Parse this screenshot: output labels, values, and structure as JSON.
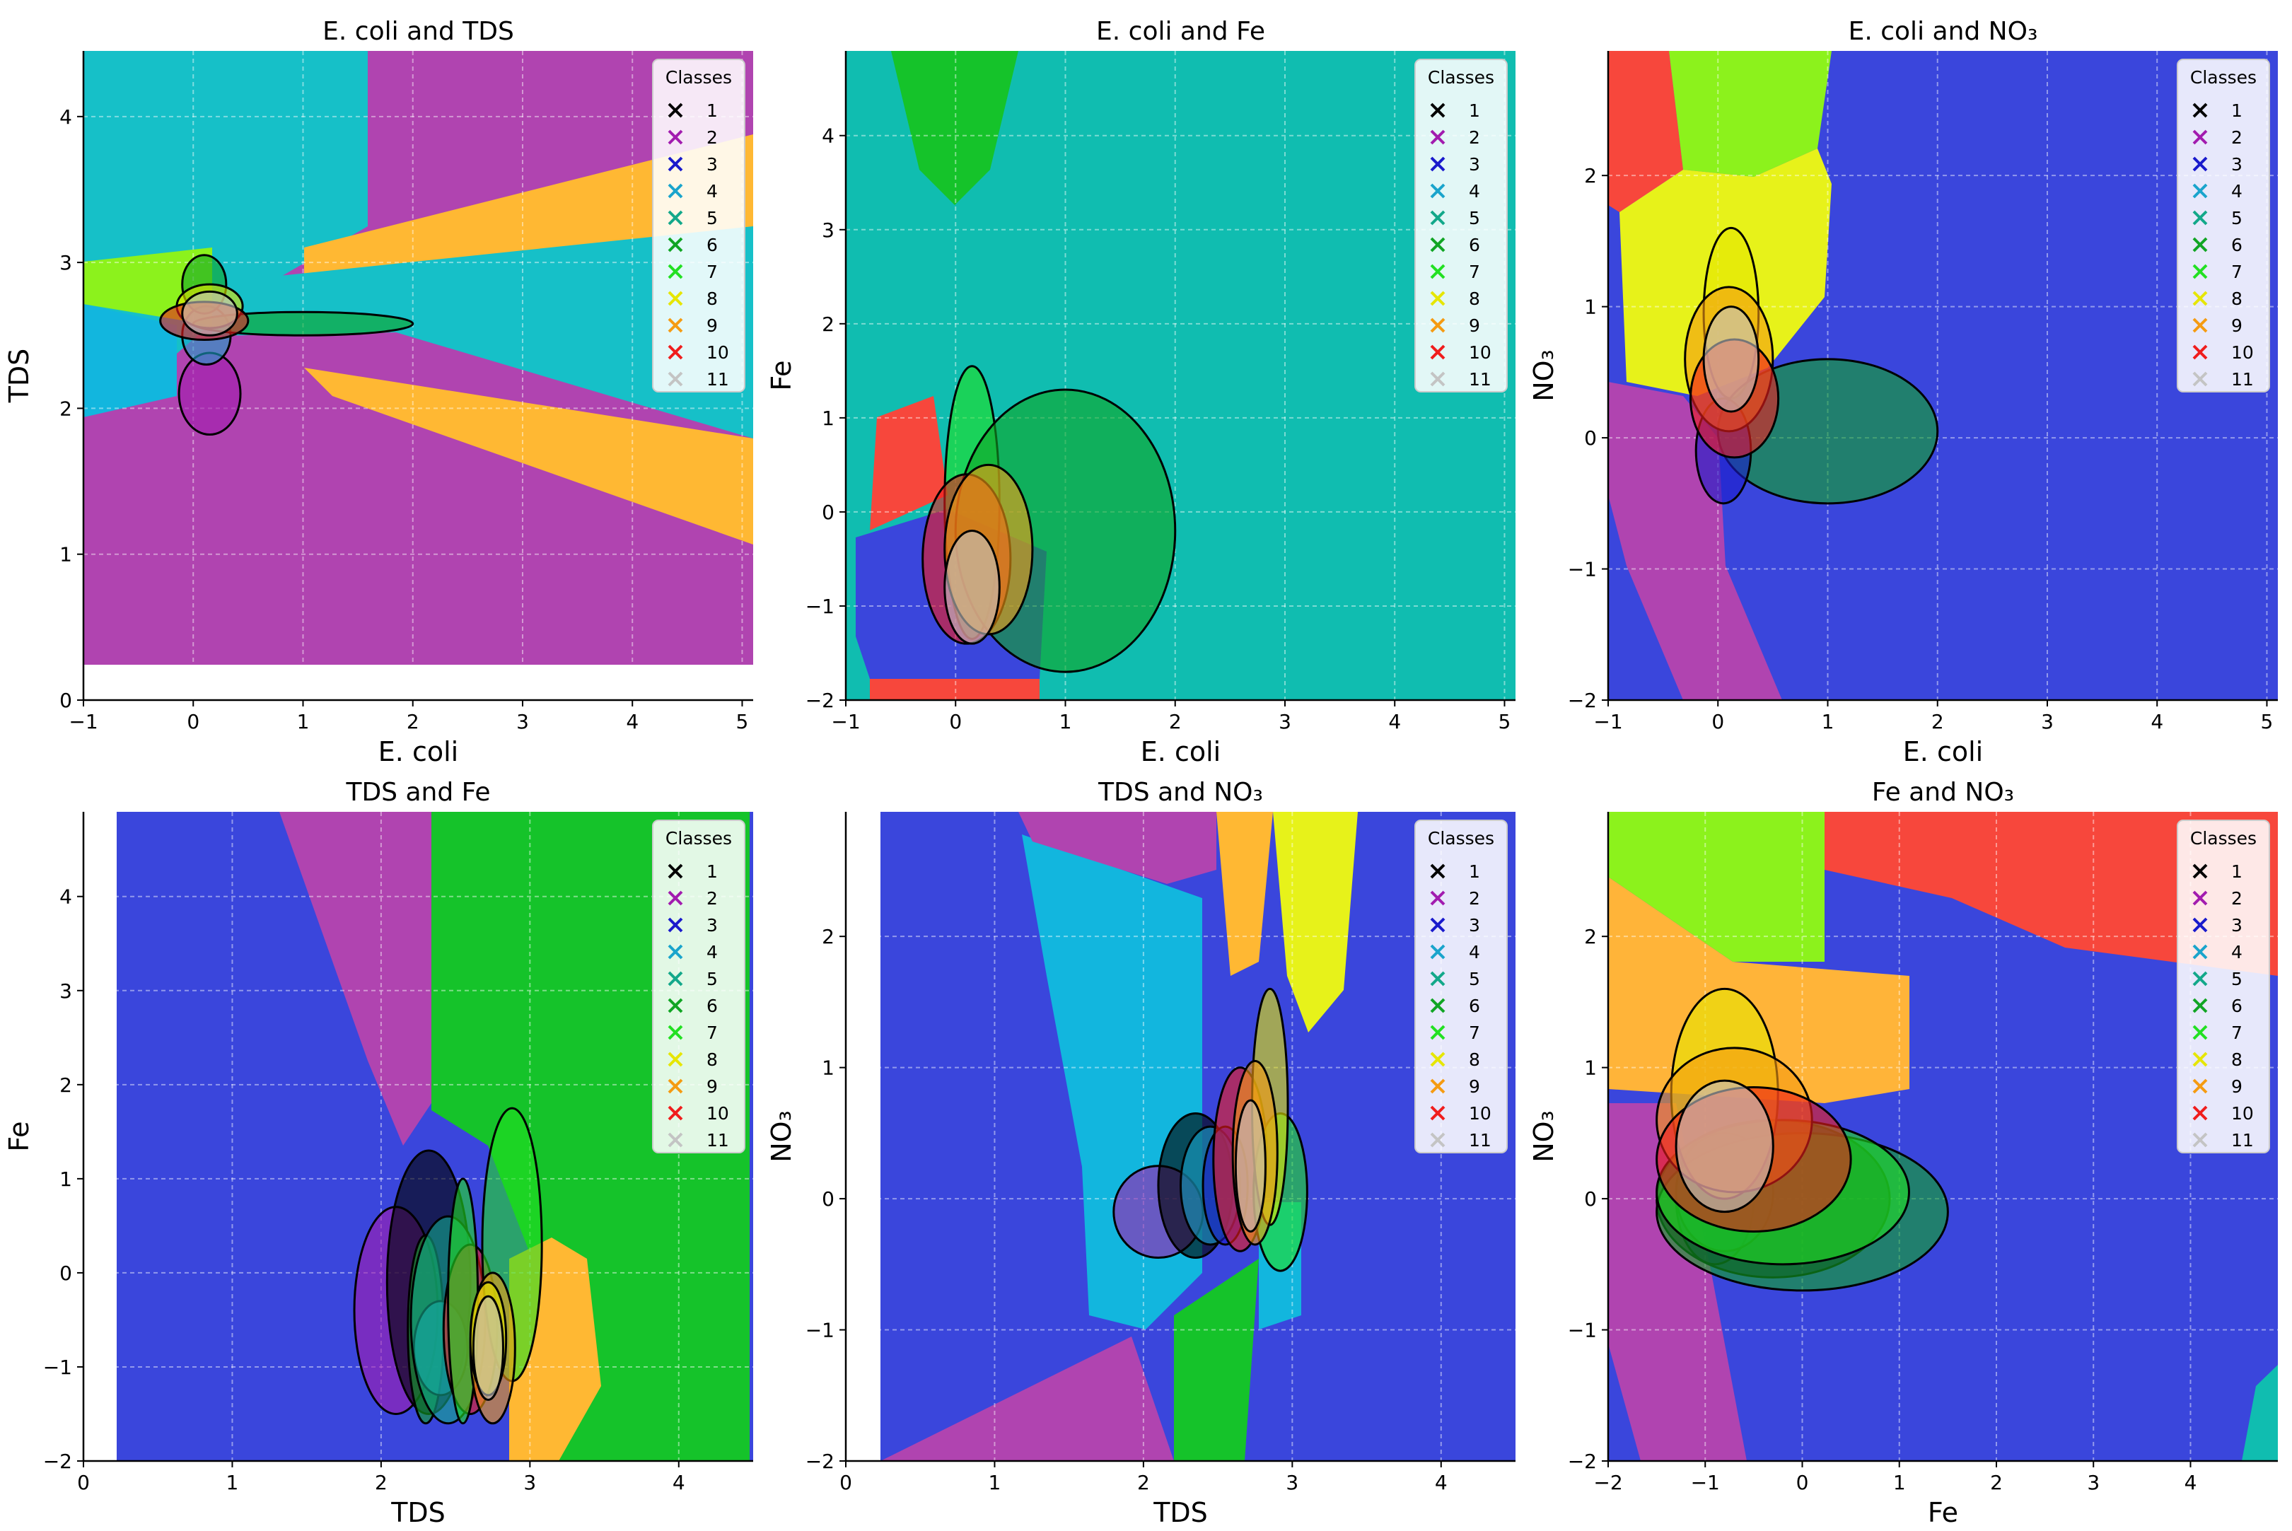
{
  "figure": {
    "legend_title": "Classes",
    "class_labels": [
      "1",
      "2",
      "3",
      "4",
      "5",
      "6",
      "7",
      "8",
      "9",
      "10",
      "11"
    ],
    "class_colors": [
      "#000000",
      "#a21caf",
      "#1a1acc",
      "#1aa4cc",
      "#13a88a",
      "#11a524",
      "#22e022",
      "#e6e600",
      "#f59b12",
      "#f01d1d",
      "#c4c4c4"
    ],
    "region_colors": {
      "magenta": "#b044b0",
      "teal": "#10bdb0",
      "cyan_light": "#16c0c8",
      "orange": "#ffb833",
      "green": "#15c32a",
      "lime": "#8cf21c",
      "blue": "#3a46dc",
      "sky": "#12b6de",
      "yellow": "#e7f21a",
      "red": "#f7473c",
      "light_orange": "#ffb439"
    }
  },
  "chart_data": [
    {
      "type": "scatter",
      "title": "E. coli and TDS",
      "xlabel": "E. coli",
      "ylabel": "TDS",
      "xlim": [
        -1,
        5.1
      ],
      "ylim": [
        0,
        4.45
      ],
      "xticks": [
        -1,
        0,
        1,
        2,
        3,
        4,
        5
      ],
      "yticks": [
        0,
        1,
        2,
        3,
        4
      ],
      "tick_labels_x": [
        "−1",
        "0",
        "1",
        "2",
        "3",
        "4",
        "5"
      ],
      "tick_labels_y": [
        "0",
        "1",
        "2",
        "3",
        "4"
      ],
      "grid": true,
      "legend_placement": "top-right",
      "decision_region_background": true,
      "gaussian_ellipses": [
        {
          "class": "2",
          "cx": 0.15,
          "cy": 2.1,
          "rx": 0.28,
          "ry": 0.28
        },
        {
          "class": "4",
          "cx": 0.12,
          "cy": 2.5,
          "rx": 0.22,
          "ry": 0.2
        },
        {
          "class": "6",
          "cx": 0.1,
          "cy": 2.85,
          "rx": 0.2,
          "ry": 0.2
        },
        {
          "class": "6",
          "cx": 1.0,
          "cy": 2.58,
          "rx": 1.0,
          "ry": 0.08
        },
        {
          "class": "8",
          "cx": 0.15,
          "cy": 2.7,
          "rx": 0.3,
          "ry": 0.15
        },
        {
          "class": "10",
          "cx": 0.1,
          "cy": 2.6,
          "rx": 0.4,
          "ry": 0.13
        },
        {
          "class": "11",
          "cx": 0.15,
          "cy": 2.65,
          "rx": 0.25,
          "ry": 0.15
        }
      ]
    },
    {
      "type": "scatter",
      "title": "E. coli and Fe",
      "xlabel": "E. coli",
      "ylabel": "Fe",
      "xlim": [
        -1,
        5.1
      ],
      "ylim": [
        -2,
        4.9
      ],
      "xticks": [
        -1,
        0,
        1,
        2,
        3,
        4,
        5
      ],
      "yticks": [
        -2,
        -1,
        0,
        1,
        2,
        3,
        4
      ],
      "tick_labels_x": [
        "−1",
        "0",
        "1",
        "2",
        "3",
        "4",
        "5"
      ],
      "tick_labels_y": [
        "−2",
        "−1",
        "0",
        "1",
        "2",
        "3",
        "4"
      ],
      "grid": true,
      "legend_placement": "top-right",
      "decision_region_background": true,
      "gaussian_ellipses": [
        {
          "class": "7",
          "cx": 0.15,
          "cy": 0.1,
          "rx": 0.25,
          "ry": 1.45
        },
        {
          "class": "6",
          "cx": 1.0,
          "cy": -0.2,
          "rx": 1.0,
          "ry": 1.5
        },
        {
          "class": "10",
          "cx": 0.1,
          "cy": -0.5,
          "rx": 0.4,
          "ry": 0.9
        },
        {
          "class": "9",
          "cx": 0.3,
          "cy": -0.4,
          "rx": 0.4,
          "ry": 0.9
        },
        {
          "class": "11",
          "cx": 0.15,
          "cy": -0.8,
          "rx": 0.25,
          "ry": 0.6
        }
      ]
    },
    {
      "type": "scatter",
      "title": "E. coli and NO₃",
      "xlabel": "E. coli",
      "ylabel": "NO₃",
      "xlim": [
        -1,
        5.1
      ],
      "ylim": [
        -2,
        2.95
      ],
      "xticks": [
        -1,
        0,
        1,
        2,
        3,
        4,
        5
      ],
      "yticks": [
        -2,
        -1,
        0,
        1,
        2
      ],
      "tick_labels_x": [
        "−1",
        "0",
        "1",
        "2",
        "3",
        "4",
        "5"
      ],
      "tick_labels_y": [
        "−2",
        "−1",
        "0",
        "1",
        "2"
      ],
      "grid": true,
      "legend_placement": "top-right",
      "decision_region_background": true,
      "gaussian_ellipses": [
        {
          "class": "8",
          "cx": 0.12,
          "cy": 0.95,
          "rx": 0.25,
          "ry": 0.65
        },
        {
          "class": "6",
          "cx": 1.0,
          "cy": 0.05,
          "rx": 1.0,
          "ry": 0.55
        },
        {
          "class": "3",
          "cx": 0.05,
          "cy": -0.1,
          "rx": 0.25,
          "ry": 0.4
        },
        {
          "class": "9",
          "cx": 0.1,
          "cy": 0.6,
          "rx": 0.4,
          "ry": 0.55
        },
        {
          "class": "10",
          "cx": 0.15,
          "cy": 0.3,
          "rx": 0.4,
          "ry": 0.45
        },
        {
          "class": "11",
          "cx": 0.12,
          "cy": 0.6,
          "rx": 0.25,
          "ry": 0.4
        }
      ]
    },
    {
      "type": "scatter",
      "title": "TDS and Fe",
      "xlabel": "TDS",
      "ylabel": "Fe",
      "xlim": [
        0,
        4.5
      ],
      "ylim": [
        -2,
        4.9
      ],
      "xticks": [
        0,
        1,
        2,
        3,
        4
      ],
      "yticks": [
        -2,
        -1,
        0,
        1,
        2,
        3,
        4
      ],
      "tick_labels_x": [
        "0",
        "1",
        "2",
        "3",
        "4"
      ],
      "tick_labels_y": [
        "−2",
        "−1",
        "0",
        "1",
        "2",
        "3",
        "4"
      ],
      "grid": true,
      "legend_placement": "top-right",
      "decision_region_background": true,
      "gaussian_ellipses": [
        {
          "class": "2",
          "cx": 2.1,
          "cy": -0.4,
          "rx": 0.28,
          "ry": 1.1
        },
        {
          "class": "1",
          "cx": 2.32,
          "cy": -0.1,
          "rx": 0.28,
          "ry": 1.4
        },
        {
          "class": "6",
          "cx": 2.3,
          "cy": -0.6,
          "rx": 0.12,
          "ry": 1.0
        },
        {
          "class": "4",
          "cx": 2.4,
          "cy": -0.8,
          "rx": 0.18,
          "ry": 0.5
        },
        {
          "class": "5",
          "cx": 2.45,
          "cy": -0.5,
          "rx": 0.25,
          "ry": 1.1
        },
        {
          "class": "10",
          "cx": 2.6,
          "cy": -0.6,
          "rx": 0.18,
          "ry": 0.9
        },
        {
          "class": "7",
          "cx": 2.55,
          "cy": -0.3,
          "rx": 0.1,
          "ry": 1.3
        },
        {
          "class": "7",
          "cx": 2.88,
          "cy": 0.3,
          "rx": 0.2,
          "ry": 1.45
        },
        {
          "class": "9",
          "cx": 2.75,
          "cy": -0.8,
          "rx": 0.15,
          "ry": 0.8
        },
        {
          "class": "8",
          "cx": 2.72,
          "cy": -0.7,
          "rx": 0.12,
          "ry": 0.6
        },
        {
          "class": "11",
          "cx": 2.72,
          "cy": -0.8,
          "rx": 0.1,
          "ry": 0.55
        }
      ]
    },
    {
      "type": "scatter",
      "title": "TDS and NO₃",
      "xlabel": "TDS",
      "ylabel": "NO₃",
      "xlim": [
        0,
        4.5
      ],
      "ylim": [
        -2,
        2.95
      ],
      "xticks": [
        0,
        1,
        2,
        3,
        4
      ],
      "yticks": [
        -2,
        -1,
        0,
        1,
        2
      ],
      "tick_labels_x": [
        "0",
        "1",
        "2",
        "3",
        "4"
      ],
      "tick_labels_y": [
        "−2",
        "−1",
        "0",
        "1",
        "2"
      ],
      "grid": true,
      "legend_placement": "top-right",
      "decision_region_background": true,
      "gaussian_ellipses": [
        {
          "class": "2",
          "cx": 2.1,
          "cy": -0.1,
          "rx": 0.3,
          "ry": 0.35
        },
        {
          "class": "1",
          "cx": 2.35,
          "cy": 0.1,
          "rx": 0.25,
          "ry": 0.55
        },
        {
          "class": "4",
          "cx": 2.45,
          "cy": 0.1,
          "rx": 0.2,
          "ry": 0.45
        },
        {
          "class": "3",
          "cx": 2.55,
          "cy": 0.1,
          "rx": 0.15,
          "ry": 0.45
        },
        {
          "class": "10",
          "cx": 2.65,
          "cy": 0.3,
          "rx": 0.18,
          "ry": 0.7
        },
        {
          "class": "7",
          "cx": 2.92,
          "cy": 0.05,
          "rx": 0.18,
          "ry": 0.6
        },
        {
          "class": "8",
          "cx": 2.85,
          "cy": 0.7,
          "rx": 0.12,
          "ry": 0.9
        },
        {
          "class": "9",
          "cx": 2.75,
          "cy": 0.35,
          "rx": 0.15,
          "ry": 0.7
        },
        {
          "class": "11",
          "cx": 2.72,
          "cy": 0.25,
          "rx": 0.1,
          "ry": 0.5
        }
      ]
    },
    {
      "type": "scatter",
      "title": "Fe and NO₃",
      "xlabel": "Fe",
      "ylabel": "NO₃",
      "xlim": [
        -2,
        4.9
      ],
      "ylim": [
        -2,
        2.95
      ],
      "xticks": [
        -2,
        -1,
        0,
        1,
        2,
        3,
        4
      ],
      "yticks": [
        -2,
        -1,
        0,
        1,
        2
      ],
      "tick_labels_x": [
        "−2",
        "−1",
        "0",
        "1",
        "2",
        "3",
        "4"
      ],
      "tick_labels_y": [
        "−2",
        "−1",
        "0",
        "1",
        "2"
      ],
      "grid": true,
      "legend_placement": "top-right",
      "decision_region_background": true,
      "gaussian_ellipses": [
        {
          "class": "3",
          "cx": -0.9,
          "cy": 0.0,
          "rx": 0.4,
          "ry": 0.5
        },
        {
          "class": "4",
          "cx": -0.8,
          "cy": 0.05,
          "rx": 0.5,
          "ry": 0.45
        },
        {
          "class": "1",
          "cx": -0.3,
          "cy": 0.0,
          "rx": 1.2,
          "ry": 0.6
        },
        {
          "class": "6",
          "cx": 0.0,
          "cy": -0.1,
          "rx": 1.5,
          "ry": 0.6
        },
        {
          "class": "7",
          "cx": -0.2,
          "cy": 0.05,
          "rx": 1.3,
          "ry": 0.55
        },
        {
          "class": "8",
          "cx": -0.8,
          "cy": 0.8,
          "rx": 0.55,
          "ry": 0.8
        },
        {
          "class": "9",
          "cx": -0.7,
          "cy": 0.6,
          "rx": 0.8,
          "ry": 0.55
        },
        {
          "class": "10",
          "cx": -0.5,
          "cy": 0.3,
          "rx": 1.0,
          "ry": 0.55
        },
        {
          "class": "11",
          "cx": -0.8,
          "cy": 0.4,
          "rx": 0.5,
          "ry": 0.5
        }
      ]
    }
  ]
}
